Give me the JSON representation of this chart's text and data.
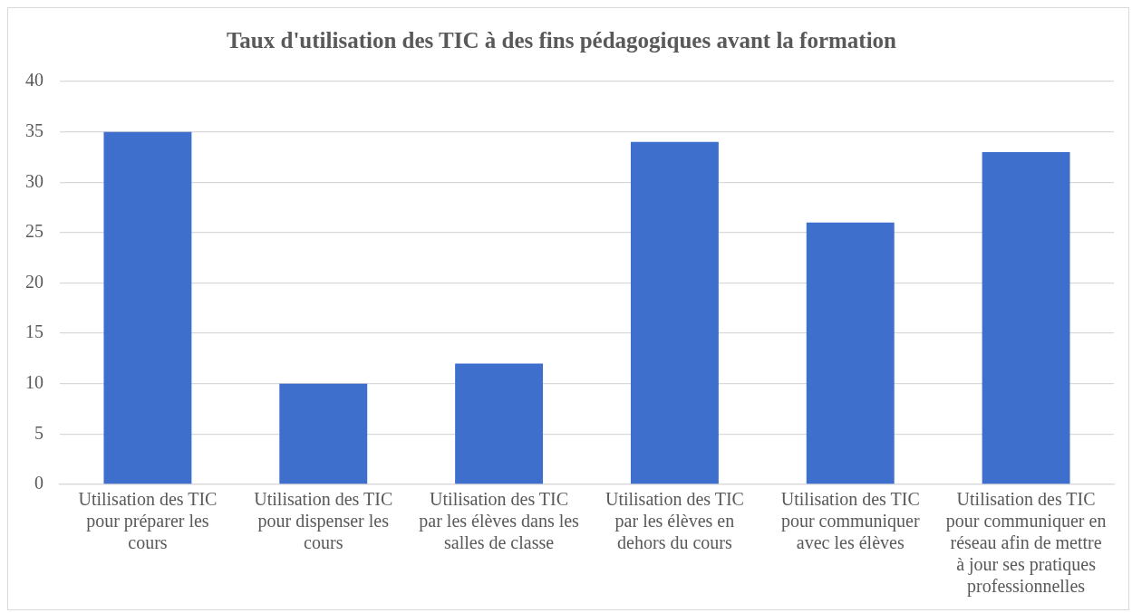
{
  "chart_data": {
    "type": "bar",
    "title": "Taux d'utilisation des TIC à des fins pédagogiques avant la formation",
    "categories": [
      "Utilisation des TIC pour préparer les cours",
      "Utilisation des TIC pour dispenser les cours",
      "Utilisation des TIC par les élèves dans les salles de classe",
      "Utilisation des TIC par les élèves en dehors du cours",
      "Utilisation des TIC pour communiquer avec les élèves",
      "Utilisation des TIC pour communiquer en réseau afin de mettre à jour ses pratiques professionnelles"
    ],
    "values": [
      35,
      10,
      12,
      34,
      26,
      33
    ],
    "color": "#3f6fcc",
    "ylim": [
      0,
      40
    ],
    "yticks": [
      0,
      5,
      10,
      15,
      20,
      25,
      30,
      35,
      40
    ],
    "grid": "y",
    "legend": false
  }
}
